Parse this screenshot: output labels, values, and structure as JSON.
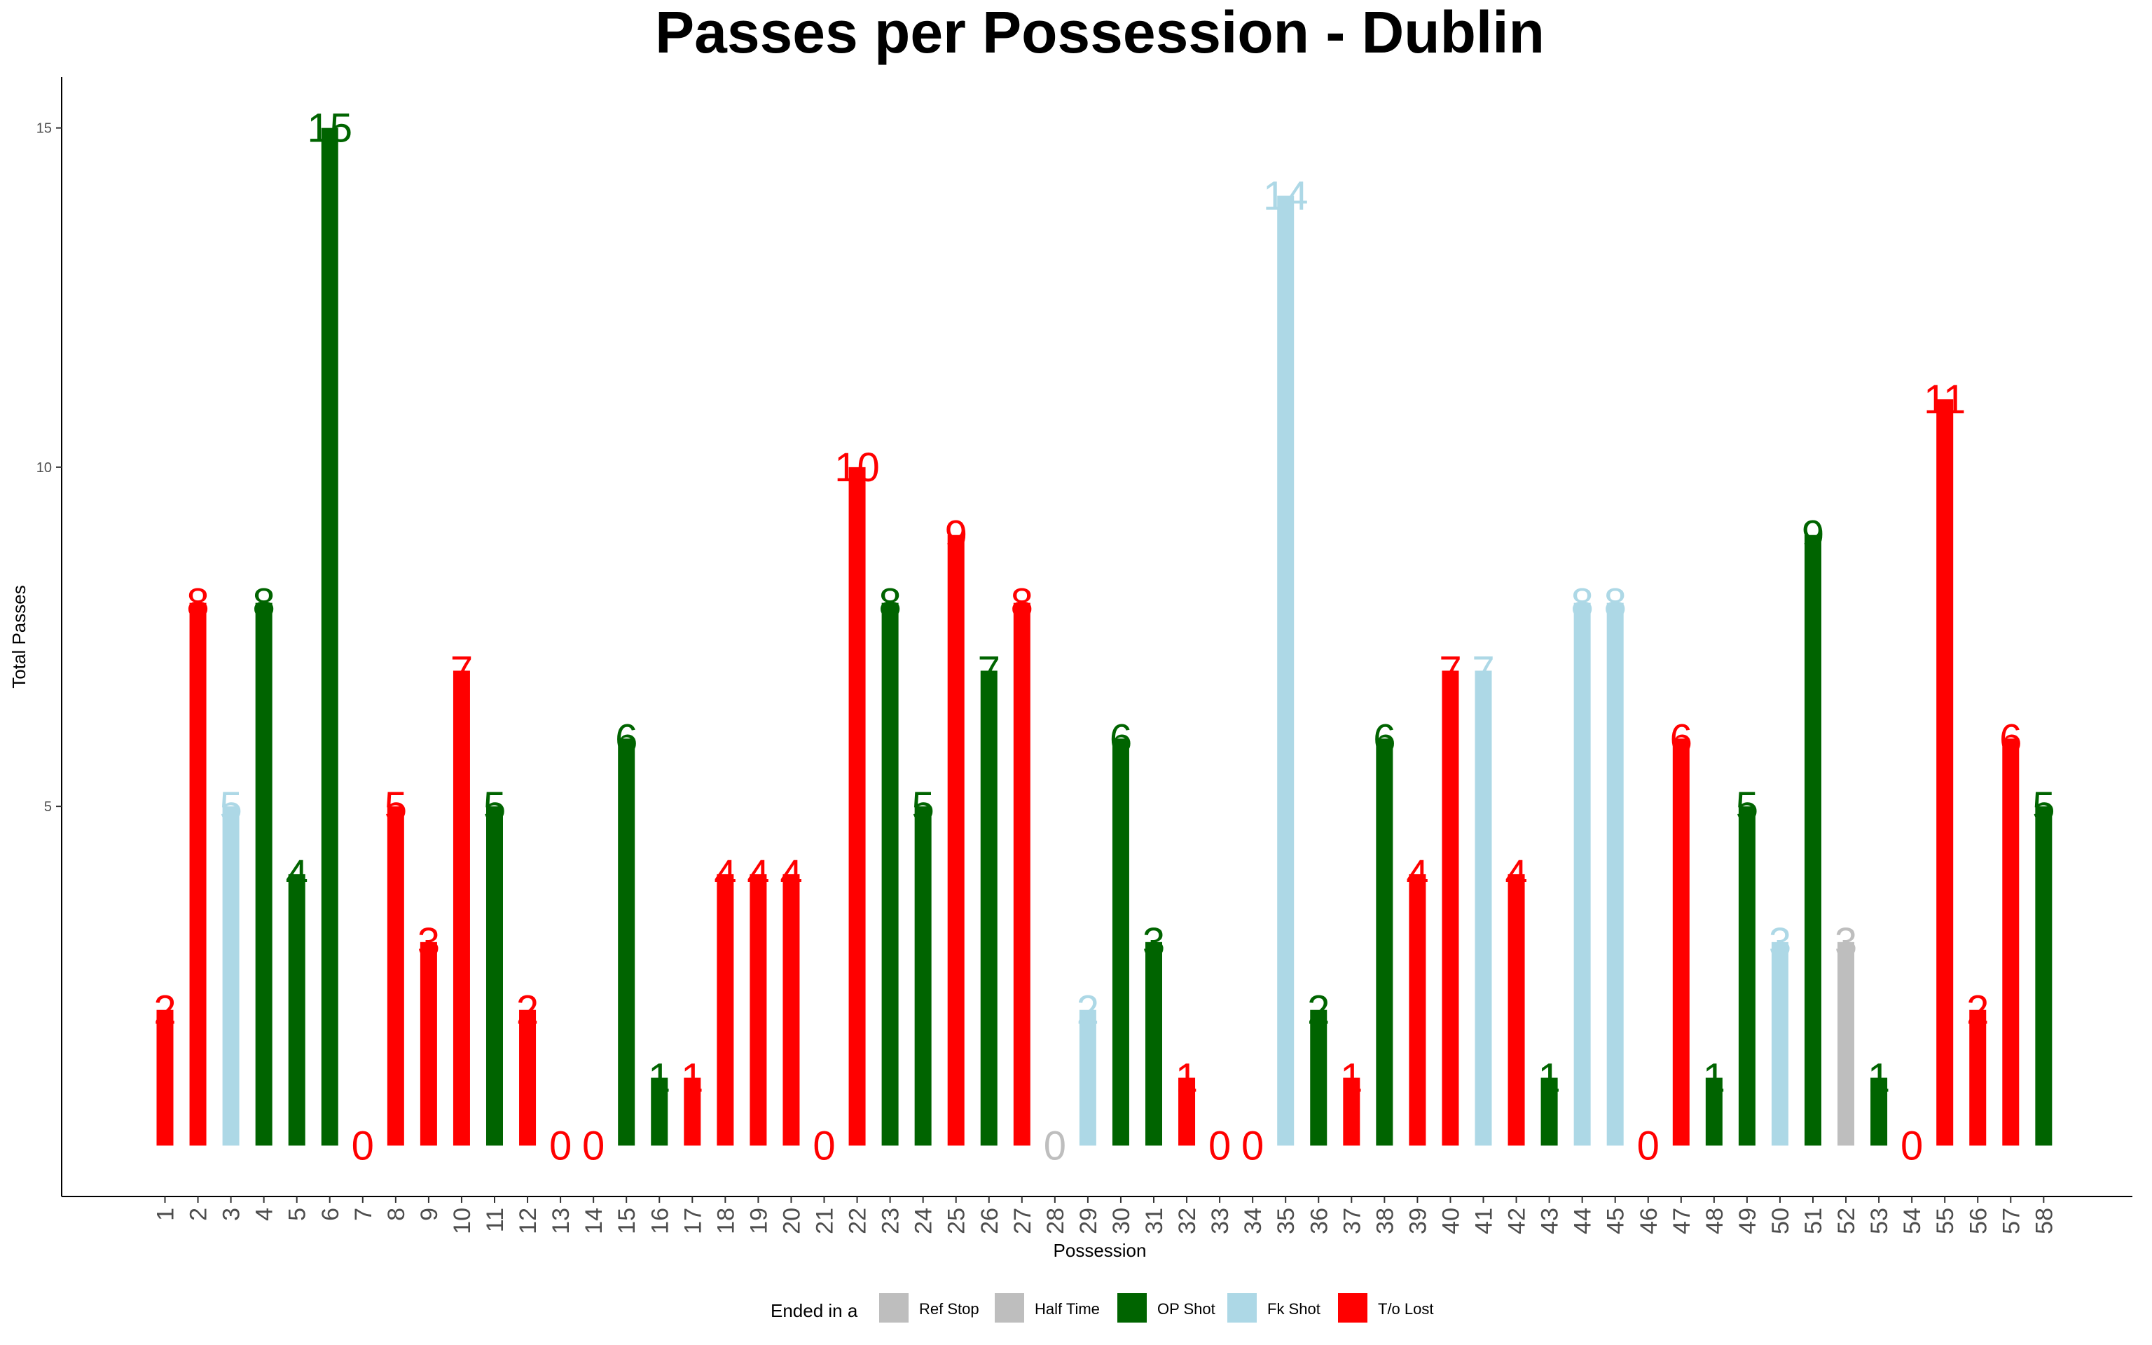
{
  "chart_data": {
    "type": "bar",
    "title": "Passes per Possession - Dublin",
    "xlabel": "Possession",
    "ylabel": "Total Passes",
    "ylim": [
      -0.75,
      15.75
    ],
    "yticks": [
      5,
      10,
      15
    ],
    "grid": false,
    "legend_placement": "bottom",
    "legend": {
      "title": "Ended in a",
      "entries": [
        {
          "name": "Ref Stop",
          "color": "#bebebe"
        },
        {
          "name": "Half Time",
          "color": "#bebebe"
        },
        {
          "name": "OP Shot",
          "color": "#006400"
        },
        {
          "name": "Fk Shot",
          "color": "#add8e6"
        },
        {
          "name": "T/o Lost",
          "color": "#ff0000"
        }
      ]
    },
    "categories": [
      "1",
      "2",
      "3",
      "4",
      "5",
      "6",
      "7",
      "8",
      "9",
      "10",
      "11",
      "12",
      "13",
      "14",
      "15",
      "16",
      "17",
      "18",
      "19",
      "20",
      "21",
      "22",
      "23",
      "24",
      "25",
      "26",
      "27",
      "28",
      "29",
      "30",
      "31",
      "32",
      "33",
      "34",
      "35",
      "36",
      "37",
      "38",
      "39",
      "40",
      "41",
      "42",
      "43",
      "44",
      "45",
      "46",
      "47",
      "48",
      "49",
      "50",
      "51",
      "52",
      "53",
      "54",
      "55",
      "56",
      "57",
      "58"
    ],
    "values": [
      2,
      8,
      5,
      8,
      4,
      15,
      0,
      5,
      3,
      7,
      5,
      2,
      0,
      0,
      6,
      1,
      1,
      4,
      4,
      4,
      0,
      10,
      8,
      5,
      9,
      7,
      8,
      0,
      2,
      6,
      3,
      1,
      0,
      0,
      14,
      2,
      1,
      6,
      4,
      7,
      7,
      4,
      1,
      8,
      8,
      0,
      6,
      1,
      5,
      3,
      9,
      3,
      1,
      0,
      11,
      2,
      6,
      5
    ],
    "outcomes": [
      "T/o Lost",
      "T/o Lost",
      "Fk Shot",
      "OP Shot",
      "OP Shot",
      "OP Shot",
      "T/o Lost",
      "T/o Lost",
      "T/o Lost",
      "T/o Lost",
      "OP Shot",
      "T/o Lost",
      "T/o Lost",
      "T/o Lost",
      "OP Shot",
      "OP Shot",
      "T/o Lost",
      "T/o Lost",
      "T/o Lost",
      "T/o Lost",
      "T/o Lost",
      "T/o Lost",
      "OP Shot",
      "OP Shot",
      "T/o Lost",
      "OP Shot",
      "T/o Lost",
      "Half Time",
      "Fk Shot",
      "OP Shot",
      "OP Shot",
      "T/o Lost",
      "T/o Lost",
      "T/o Lost",
      "Fk Shot",
      "OP Shot",
      "T/o Lost",
      "OP Shot",
      "T/o Lost",
      "T/o Lost",
      "Fk Shot",
      "T/o Lost",
      "OP Shot",
      "Fk Shot",
      "Fk Shot",
      "T/o Lost",
      "T/o Lost",
      "OP Shot",
      "OP Shot",
      "Fk Shot",
      "OP Shot",
      "Ref Stop",
      "OP Shot",
      "T/o Lost",
      "T/o Lost",
      "T/o Lost",
      "T/o Lost",
      "OP Shot"
    ]
  }
}
